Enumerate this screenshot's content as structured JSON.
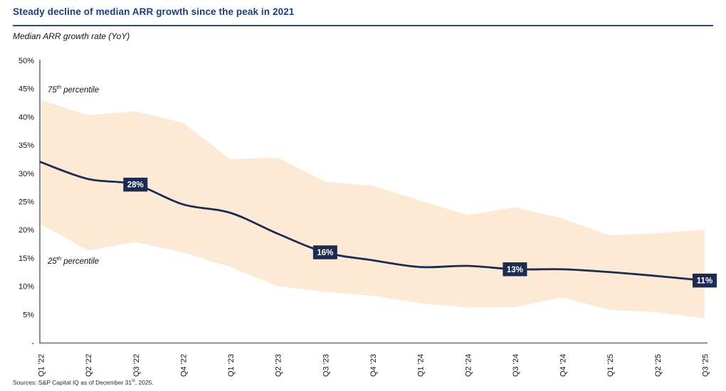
{
  "header": {
    "title": "Steady decline of median ARR growth since the peak in 2021",
    "subtitle": "Median ARR growth rate (YoY)"
  },
  "annotations": {
    "p75": {
      "num": "75",
      "sup": "th",
      "rest": " percentile"
    },
    "p25": {
      "num": "25",
      "sup": "th",
      "rest": " percentile"
    }
  },
  "footer": {
    "source_prefix": "Sources: S&P Capital IQ as of December 31",
    "source_sup": "st",
    "source_suffix": ", 2025."
  },
  "colors": {
    "band": "#fce9d6",
    "line": "#1d2b50",
    "callout_bg": "#1d2b50",
    "callout_text": "#ffffff",
    "axis": "#7f7f7f",
    "tick_text": "#141414",
    "title": "#1f3d7a"
  },
  "chart_data": {
    "type": "area",
    "title": "Steady decline of median ARR growth since the peak in 2021",
    "subtitle": "Median ARR growth rate (YoY)",
    "categories": [
      "Q1 '22",
      "Q2 '22",
      "Q3 '22",
      "Q4 '22",
      "Q1 '23",
      "Q2 '23",
      "Q3 '23",
      "Q4 '23",
      "Q1 '24",
      "Q2 '24",
      "Q3 '24",
      "Q4 '24",
      "Q1 '25",
      "Q2 '25",
      "Q3 '25"
    ],
    "series": [
      {
        "name": "75th percentile",
        "role": "band_upper",
        "values": [
          43,
          40.3,
          41,
          39,
          32.5,
          32.8,
          28.5,
          27.8,
          25.2,
          22.6,
          24,
          22,
          19,
          19.4,
          20
        ]
      },
      {
        "name": "Median",
        "role": "line",
        "values": [
          32,
          29,
          28,
          24.5,
          23,
          19.3,
          16,
          14.6,
          13.4,
          13.6,
          13,
          13,
          12.5,
          11.8,
          11
        ]
      },
      {
        "name": "25th percentile",
        "role": "band_lower",
        "values": [
          21,
          16.3,
          17.8,
          16,
          13.4,
          10,
          9,
          8.3,
          7,
          6.2,
          6.3,
          8,
          5.8,
          5.4,
          4.3
        ]
      }
    ],
    "callouts": [
      {
        "index": 2,
        "label": "28%"
      },
      {
        "index": 6,
        "label": "16%"
      },
      {
        "index": 10,
        "label": "13%"
      },
      {
        "index": 14,
        "label": "11%"
      }
    ],
    "ylim": [
      0,
      50
    ],
    "yticks": {
      "values": [
        0,
        5,
        10,
        15,
        20,
        25,
        30,
        35,
        40,
        45,
        50
      ],
      "labels": [
        "-",
        "5%",
        "10%",
        "15%",
        "20%",
        "25%",
        "30%",
        "35%",
        "40%",
        "45%",
        "50%"
      ]
    },
    "grid": false,
    "legend": "annotations inside plot (75th percentile above band, 25th percentile below band)"
  }
}
